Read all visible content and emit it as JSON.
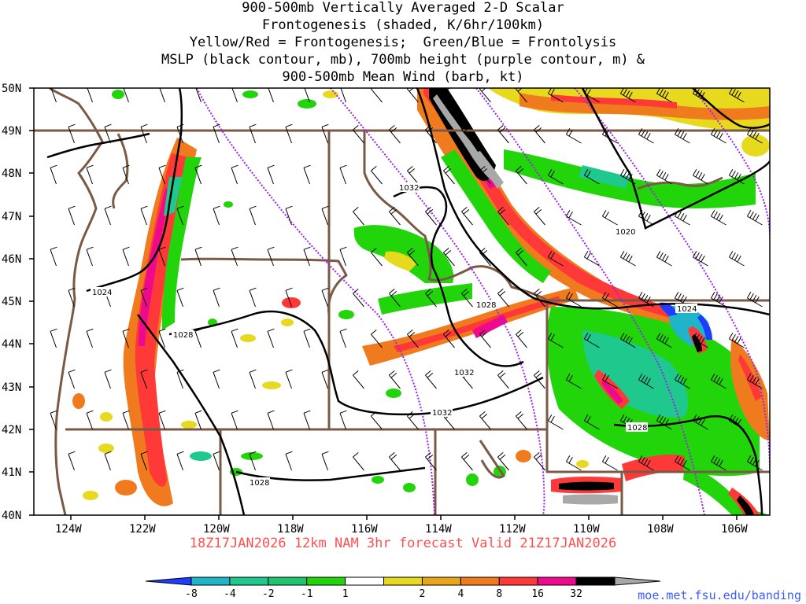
{
  "title": {
    "lines": [
      "900-500mb Vertically Averaged 2-D Scalar",
      "Frontogenesis (shaded, K/6hr/100km)",
      "Yellow/Red = Frontogenesis;  Green/Blue = Frontolysis",
      "MSLP (black contour, mb), 700mb height (purple contour, m) &",
      "900-500mb Mean Wind (barb, kt)"
    ]
  },
  "axes": {
    "lat_labels": [
      "50N",
      "49N",
      "48N",
      "47N",
      "46N",
      "45N",
      "44N",
      "43N",
      "42N",
      "41N",
      "40N"
    ],
    "lon_labels": [
      "124W",
      "122W",
      "120W",
      "118W",
      "116W",
      "114W",
      "112W",
      "110W",
      "108W",
      "106W"
    ],
    "lat_range": [
      40,
      50
    ],
    "lon_range": [
      -125,
      -105
    ]
  },
  "contour_labels": [
    "1032",
    "1020",
    "1024",
    "1028",
    "1024",
    "1028",
    "1032",
    "1032",
    "1028",
    "1028"
  ],
  "run_info": "18Z17JAN2026 12km NAM 3hr forecast Valid 21Z17JAN2026",
  "colorbar": {
    "tick_labels": [
      "-8",
      "-4",
      "-2",
      "-1",
      "1",
      "2",
      "4",
      "8",
      "16",
      "32"
    ],
    "colors": [
      "#1f3cff",
      "#1fb4c8",
      "#1fc88c",
      "#21c46e",
      "#22d40a",
      "#ffffff",
      "#e6d91e",
      "#e8a61a",
      "#f07a1e",
      "#ff3838",
      "#ee0a8c",
      "#000000",
      "#a8a8a8"
    ]
  },
  "credit": "moe.met.fsu.edu/banding",
  "colors": {
    "state_borders": "#7a5a45",
    "mslp_contour": "#000000",
    "height_contour": "#a020f0",
    "run_info_text": "#ff5050",
    "credit_text": "#3a5cff"
  }
}
